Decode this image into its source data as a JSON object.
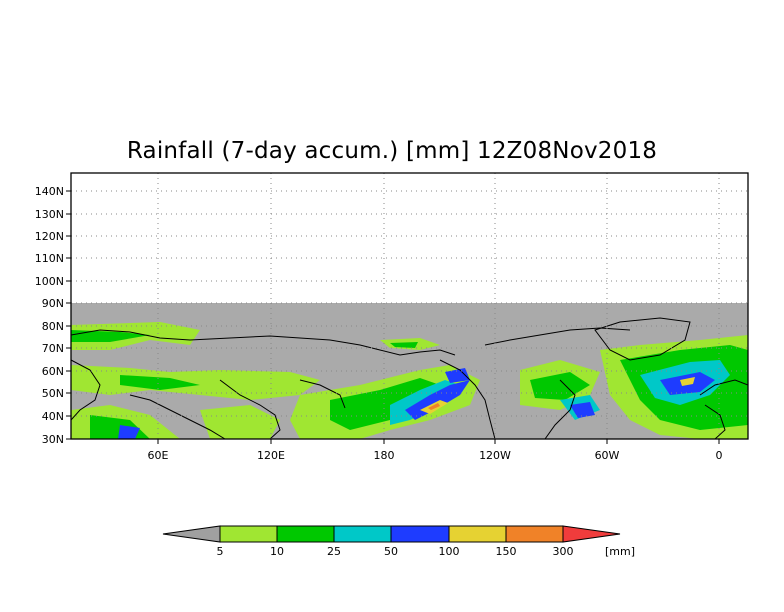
{
  "title": "Rainfall (7-day accum.) [mm] 12Z08Nov2018",
  "map": {
    "lat_labels": [
      "140N",
      "130N",
      "120N",
      "110N",
      "100N",
      "90N",
      "80N",
      "70N",
      "60N",
      "50N",
      "40N",
      "30N"
    ],
    "lon_labels": [
      "60E",
      "120E",
      "180",
      "120W",
      "60W",
      "0"
    ],
    "no_data_color": "#aaaaaa",
    "grid": "dotted"
  },
  "colorbar": {
    "ticks": [
      "5",
      "10",
      "25",
      "50",
      "100",
      "150",
      "300"
    ],
    "unit": "[mm]",
    "colors": [
      "#a0a0a0",
      "#a0e632",
      "#00c800",
      "#00c8c8",
      "#1e3cff",
      "#e6d232",
      "#f08228",
      "#f03c3c"
    ]
  }
}
